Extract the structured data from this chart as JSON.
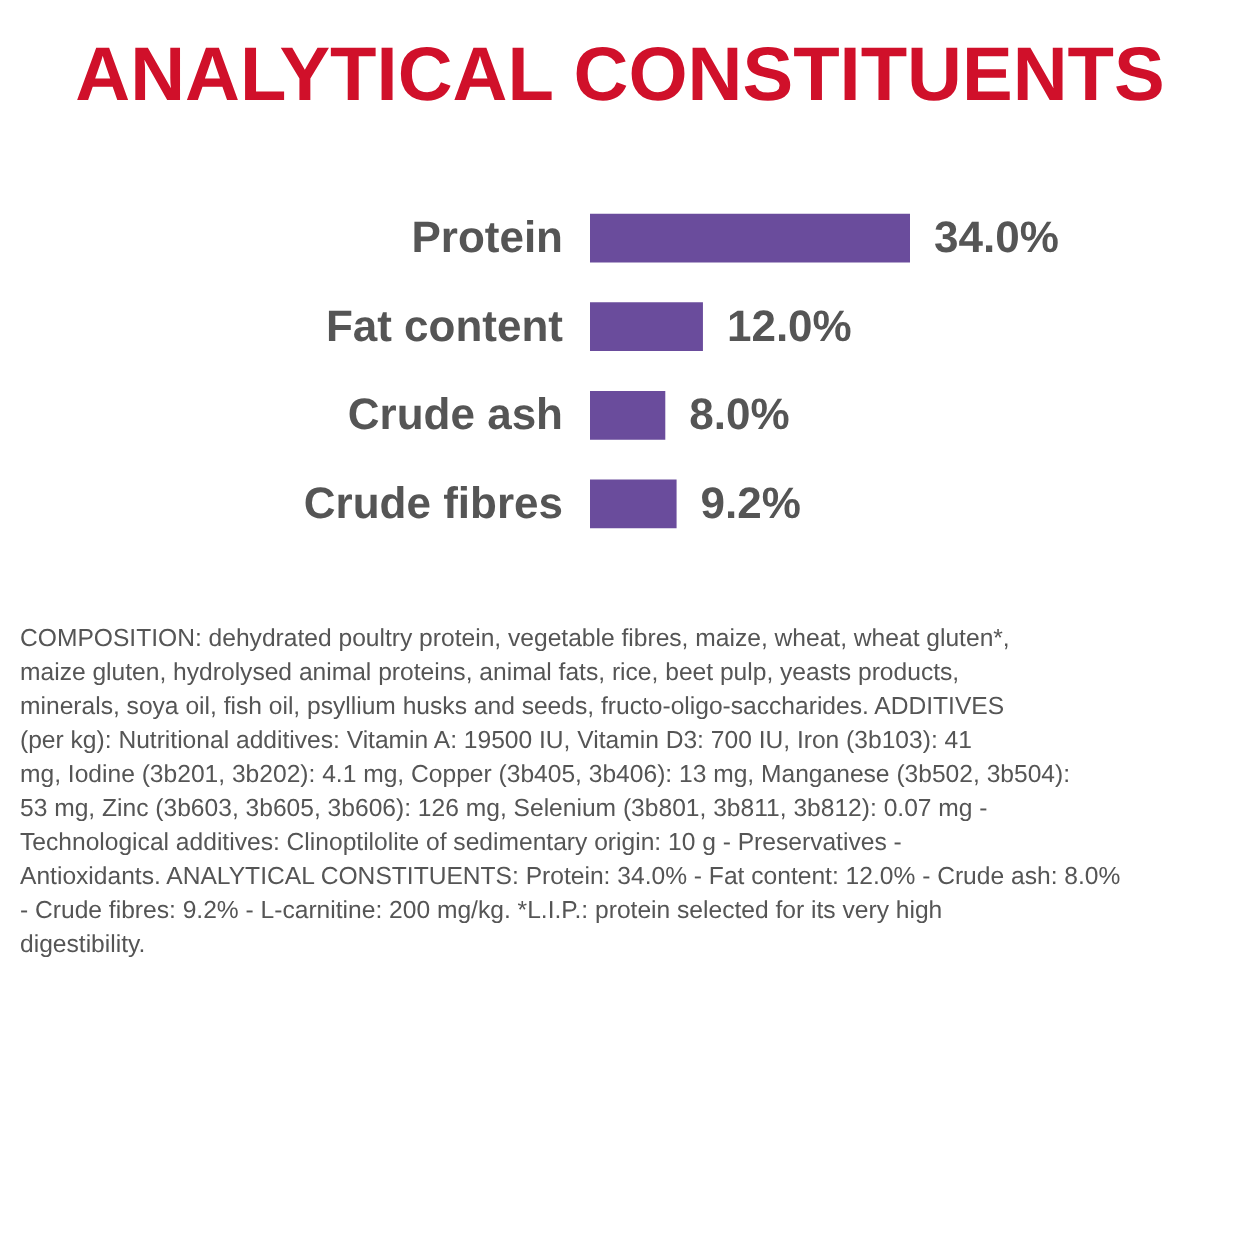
{
  "chart_data": {
    "type": "bar",
    "orientation": "horizontal",
    "title": "ANALYTICAL CONSTITUENTS",
    "categories": [
      "Protein",
      "Fat content",
      "Crude ash",
      "Crude fibres"
    ],
    "values": [
      34.0,
      12.0,
      8.0,
      9.2
    ],
    "value_labels": [
      "34.0%",
      "12.0%",
      "8.0%",
      "9.2%"
    ],
    "color": "#6a4c9c",
    "annotations": [
      "COMPOSITION: dehydrated poultry protein, vegetable fibres, maize, wheat, wheat gluten*, maize gluten, hydrolysed animal proteins, animal fats, rice, beet pulp, yeasts products, minerals, soya oil, fish oil, psyllium husks and seeds, fructo-oligo-saccharides. ADDITIVES (per kg): Nutritional additives: Vitamin A: 19500 IU, Vitamin D3: 700 IU, Iron (3b103): 41 mg, Iodine (3b201, 3b202): 4.1 mg, Copper (3b405, 3b406): 13 mg, Manganese (3b502, 3b504): 53 mg, Zinc (3b603, 3b605, 3b606): 126 mg, Selenium (3b801, 3b811, 3b812): 0.07 mg - Technological additives: Clinoptilolite of sedimentary origin: 10 g - Preservatives - Antioxidants. ANALYTICAL CONSTITUENTS: Protein: 34.0% - Fat content: 12.0% - Crude ash: 8.0% - Crude fibres: 9.2% - L-carnitine: 200 mg/kg. *L.I.P.: protein selected for its very high digestibility."
    ],
    "grid": false
  }
}
